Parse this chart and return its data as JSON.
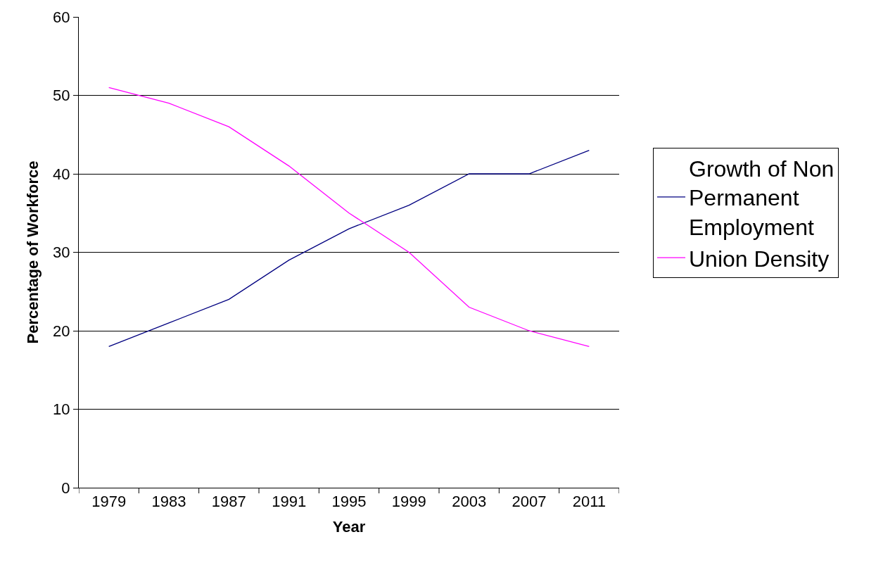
{
  "chart_data": {
    "type": "line",
    "xlabel": "Year",
    "ylabel": "Percentage of Workforce",
    "categories": [
      "1979",
      "1983",
      "1987",
      "1991",
      "1995",
      "1999",
      "2003",
      "2007",
      "2011"
    ],
    "series": [
      {
        "name": "Growth of Non Permanent Employment",
        "color": "#000080",
        "values": [
          18,
          21,
          24,
          29,
          33,
          36,
          40,
          40,
          43
        ]
      },
      {
        "name": "Union Density",
        "color": "#ff00ff",
        "values": [
          51,
          49,
          46,
          41,
          35,
          30,
          23,
          20,
          18
        ]
      }
    ],
    "ylim": [
      0,
      60
    ],
    "yticks": [
      0,
      10,
      20,
      30,
      40,
      50,
      60
    ],
    "grid": "y",
    "legend": "right",
    "marker": "none",
    "line_style": "solid"
  }
}
